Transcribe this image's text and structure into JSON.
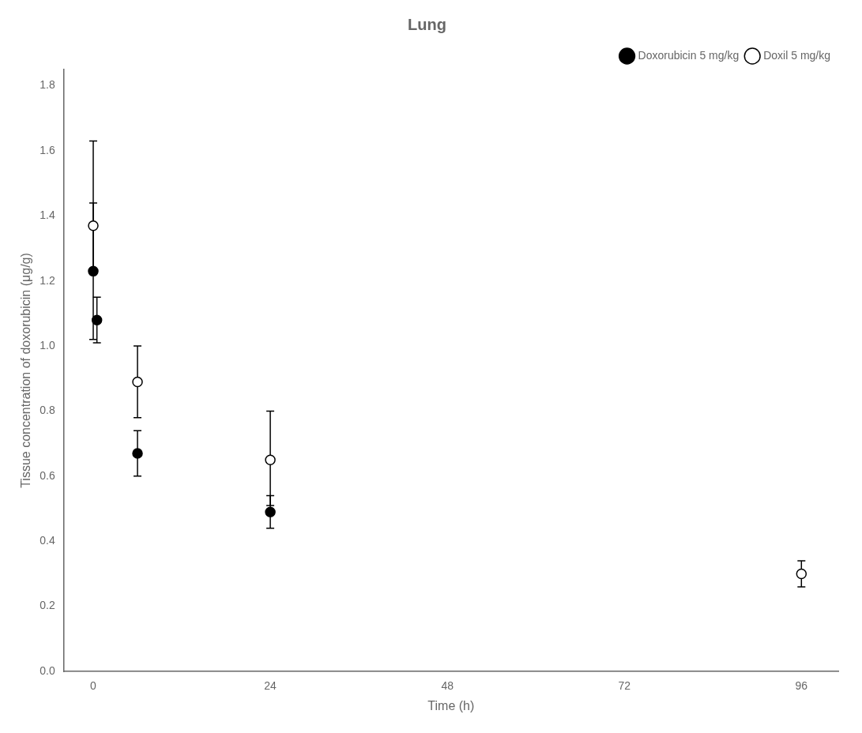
{
  "chart_data": {
    "type": "scatter",
    "title": "Lung",
    "xlabel": "Time (h)",
    "ylabel": "Tissue concentration of doxorubicin (μg/g)",
    "xlim": [
      -4,
      101
    ],
    "ylim": [
      0.0,
      1.85
    ],
    "xticks": [
      0,
      24,
      48,
      72,
      96
    ],
    "yticks": [
      {
        "value": 0.0,
        "label": "0.0"
      },
      0.2,
      0.4,
      0.6,
      0.8,
      {
        "value": 1.0,
        "label": "1.0"
      },
      1.2,
      1.4,
      1.6,
      1.8
    ],
    "grid": false,
    "legend": "upper right",
    "series": [
      {
        "name": "Doxorubicin 5 mg/kg",
        "color": "#000000",
        "marker": "circle",
        "x": [
          0,
          0.5,
          6,
          24
        ],
        "values": [
          1.23,
          1.08,
          0.67,
          0.49
        ],
        "yerr_low": [
          0.21,
          0.07,
          0.07,
          0.05
        ],
        "yerr_high": [
          0.21,
          0.07,
          0.07,
          0.05
        ]
      },
      {
        "name": "Doxil 5 mg/kg",
        "color": "#000000",
        "marker": "open_circle",
        "x": [
          0,
          6,
          24,
          96
        ],
        "values": [
          1.37,
          0.89,
          0.65,
          0.3
        ],
        "yerr_low": [
          0.14,
          0.11,
          0.14,
          0.04
        ],
        "yerr_high": [
          0.26,
          0.11,
          0.15,
          0.04
        ]
      }
    ]
  }
}
